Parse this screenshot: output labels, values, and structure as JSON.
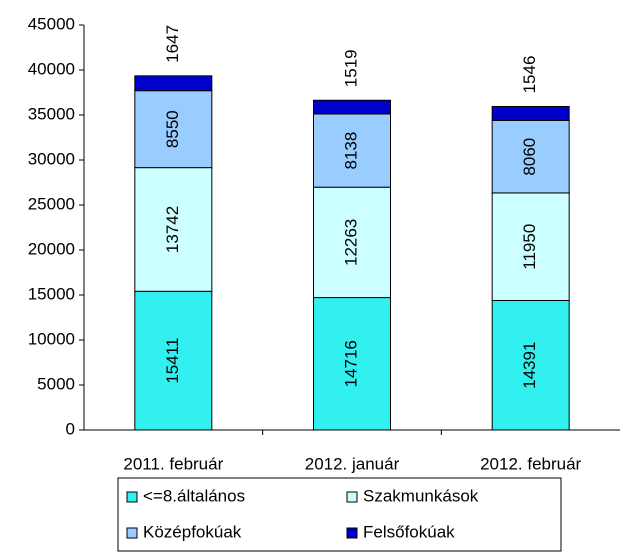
{
  "chart_data": {
    "type": "stacked_bar",
    "categories": [
      "2011. február",
      "2012. január",
      "2012. február"
    ],
    "series": [
      {
        "name": "<=8.általános",
        "color": "#33f0f0",
        "values": [
          15411,
          14716,
          14391
        ]
      },
      {
        "name": "Szakmunkások",
        "color": "#ccffff",
        "values": [
          13742,
          12263,
          11950
        ]
      },
      {
        "name": "Középfokúak",
        "color": "#99ccff",
        "values": [
          8550,
          8138,
          8060
        ]
      },
      {
        "name": "Felsőfokúak",
        "color": "#0000cc",
        "values": [
          1647,
          1519,
          1546
        ]
      }
    ],
    "ylim": [
      0,
      45000
    ],
    "yticks": [
      0,
      5000,
      10000,
      15000,
      20000,
      25000,
      30000,
      35000,
      40000,
      45000
    ],
    "grid": false
  }
}
